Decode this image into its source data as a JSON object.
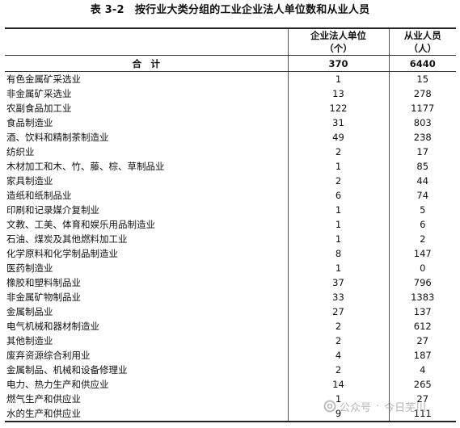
{
  "title": "表 3-2　按行业大类分组的工业企业法人单位数和从业人员",
  "headers": {
    "industry": "",
    "units_line1": "企业法人单位",
    "units_line2": "（个）",
    "employees_line1": "从业人员",
    "employees_line2": "（人）"
  },
  "total": {
    "label": "合　计",
    "units": "370",
    "employees": "6440"
  },
  "rows": [
    {
      "name": "有色金属矿采选业",
      "units": "1",
      "employees": "15"
    },
    {
      "name": "非金属矿采选业",
      "units": "13",
      "employees": "278"
    },
    {
      "name": "农副食品加工业",
      "units": "122",
      "employees": "1177"
    },
    {
      "name": "食品制造业",
      "units": "31",
      "employees": "803"
    },
    {
      "name": "酒、饮料和精制茶制造业",
      "units": "49",
      "employees": "238"
    },
    {
      "name": "纺织业",
      "units": "2",
      "employees": "17"
    },
    {
      "name": "木材加工和木、竹、藤、棕、草制品业",
      "units": "1",
      "employees": "85"
    },
    {
      "name": "家具制造业",
      "units": "2",
      "employees": "44"
    },
    {
      "name": "造纸和纸制品业",
      "units": "6",
      "employees": "74"
    },
    {
      "name": "印刷和记录媒介复制业",
      "units": "1",
      "employees": "5"
    },
    {
      "name": "文教、工美、体育和娱乐用品制造业",
      "units": "1",
      "employees": "6"
    },
    {
      "name": "石油、煤炭及其他燃料加工业",
      "units": "1",
      "employees": "2"
    },
    {
      "name": "化学原料和化学制品制造业",
      "units": "8",
      "employees": "147"
    },
    {
      "name": "医药制造业",
      "units": "1",
      "employees": "0"
    },
    {
      "name": "橡胶和塑料制品业",
      "units": "37",
      "employees": "796"
    },
    {
      "name": "非金属矿物制品业",
      "units": "33",
      "employees": "1383"
    },
    {
      "name": "金属制品业",
      "units": "27",
      "employees": "137"
    },
    {
      "name": "电气机械和器材制造业",
      "units": "2",
      "employees": "612"
    },
    {
      "name": "其他制造业",
      "units": "2",
      "employees": "27"
    },
    {
      "name": "废弃资源综合利用业",
      "units": "4",
      "employees": "187"
    },
    {
      "name": "金属制品、机械和设备修理业",
      "units": "2",
      "employees": "4"
    },
    {
      "name": "电力、热力生产和供应业",
      "units": "14",
      "employees": "265"
    },
    {
      "name": "燃气生产和供应业",
      "units": "1",
      "employees": "27"
    },
    {
      "name": "水的生产和供应业",
      "units": "9",
      "employees": "111"
    }
  ],
  "watermark": {
    "icon": "wechat-official-account-icon",
    "platform": "公众号",
    "separator": "·",
    "account": "今日芜川"
  }
}
